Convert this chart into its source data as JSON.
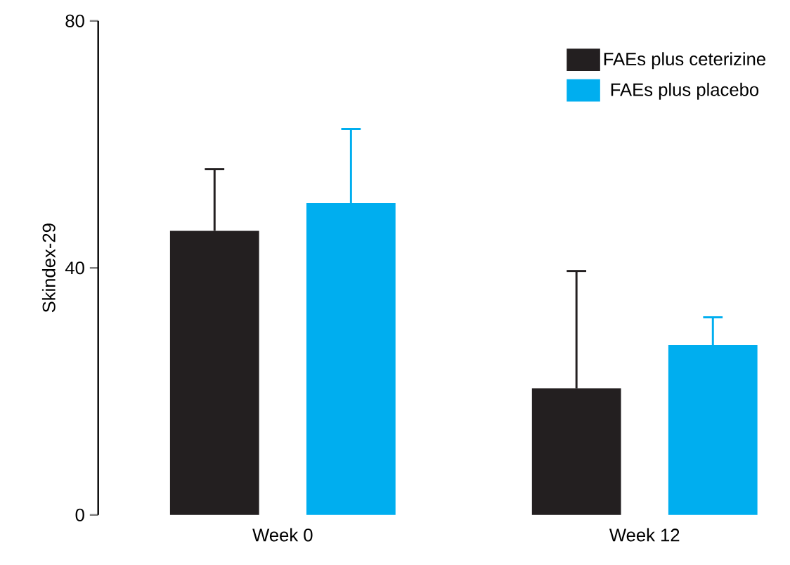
{
  "chart_data": {
    "type": "bar",
    "ylabel": "Skindex-29",
    "categories": [
      "Week 0",
      "Week 12"
    ],
    "series": [
      {
        "name": "FAEs plus ceterizine",
        "color": "#231f20",
        "values": [
          46,
          20.5
        ],
        "errors": [
          [
            46,
            56
          ],
          [
            20.5,
            39.5
          ]
        ]
      },
      {
        "name": "FAEs plus placebo",
        "color": "#00aeef",
        "values": [
          50.5,
          27.5
        ],
        "errors": [
          [
            50.5,
            62.5
          ],
          [
            27.5,
            32
          ]
        ]
      }
    ],
    "ylim": [
      0,
      80
    ],
    "yticks": [
      0,
      40,
      80
    ],
    "legend": "top right"
  }
}
